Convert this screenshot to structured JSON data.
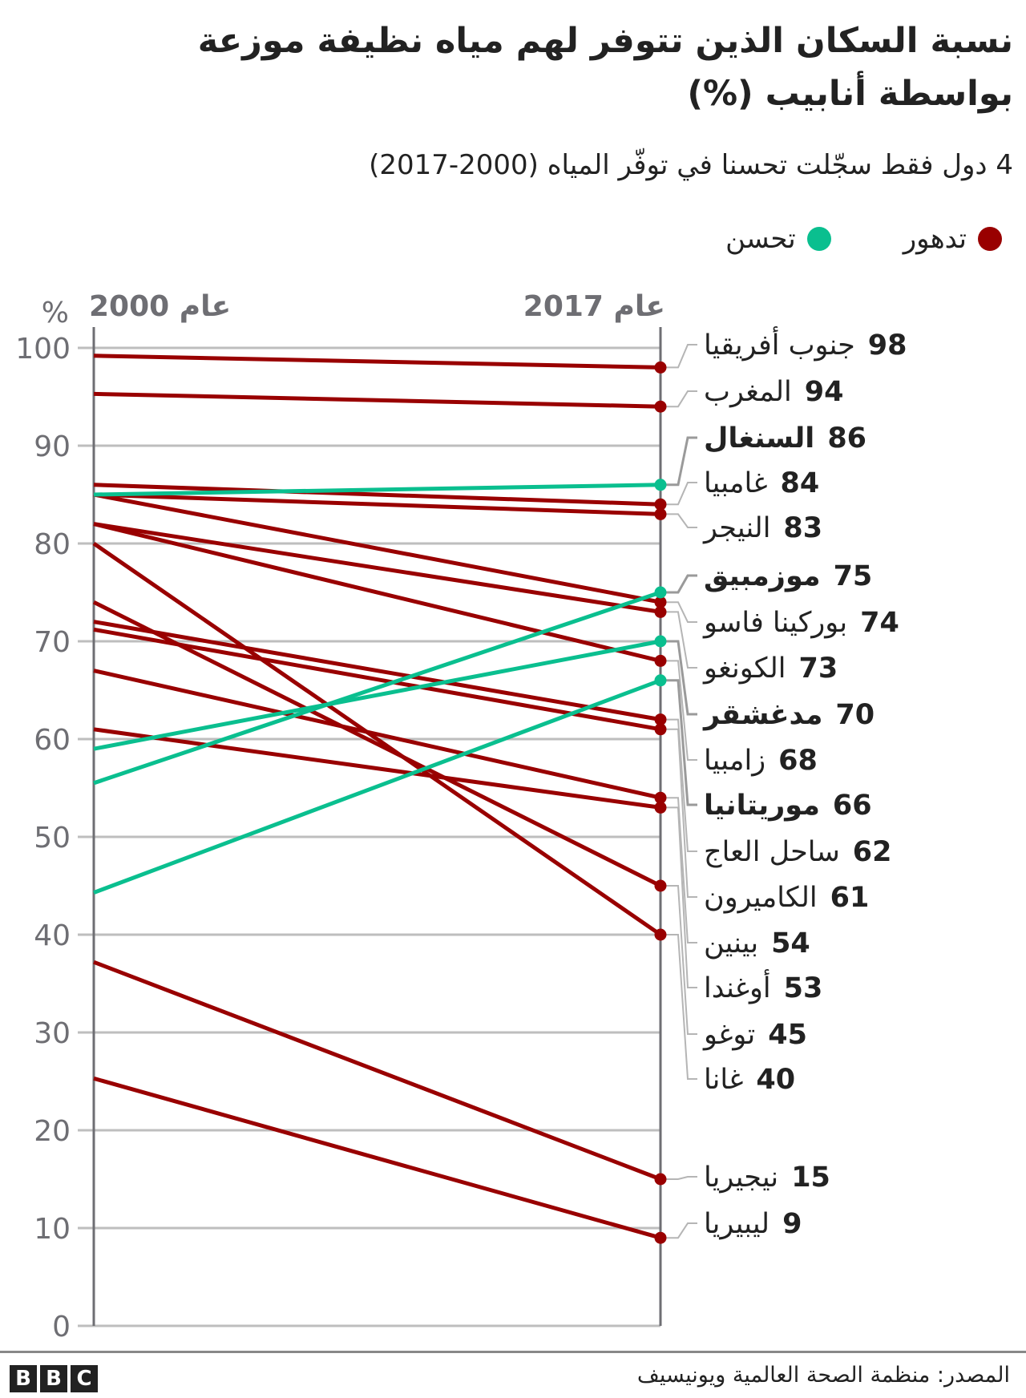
{
  "header": {
    "title": "نسبة السكان الذين تتوفر لهم مياه نظيفة موزعة بواسطة أنابيب (%)",
    "subtitle": "4 دول فقط سجّلت تحسنا في توفّر المياه (2000-2017)"
  },
  "legend": {
    "decline_label": "تدهور",
    "improve_label": "تحسن"
  },
  "colors": {
    "decline": "#990000",
    "improve": "#0ABF8F",
    "grid": "#bebebe",
    "axis": "#6e6e73"
  },
  "footer": {
    "source": "المصدر: منظمة الصحة العالمية ويونيسيف",
    "logo_letters": [
      "B",
      "B",
      "C"
    ]
  },
  "chart_data": {
    "type": "line",
    "subtype": "slope",
    "title": "نسبة السكان الذين تتوفر لهم مياه نظيفة موزعة بواسطة أنابيب (%)",
    "subtitle": "4 دول فقط سجّلت تحسنا في توفّر المياه (2000-2017)",
    "x": [
      "عام 2000",
      "عام 2017"
    ],
    "ylabel": "%",
    "ylim": [
      0,
      100
    ],
    "yticks": [
      0,
      10,
      20,
      30,
      40,
      50,
      60,
      70,
      80,
      90,
      100
    ],
    "grid": true,
    "legend_position": "top-right",
    "series": [
      {
        "name": "جنوب أفريقيا",
        "values": [
          99.2,
          98
        ],
        "status": "decline",
        "label_value": "98",
        "bold": false
      },
      {
        "name": "المغرب",
        "values": [
          95.3,
          94
        ],
        "status": "decline",
        "label_value": "94",
        "bold": false
      },
      {
        "name": "السنغال",
        "values": [
          85,
          86
        ],
        "status": "improve",
        "label_value": "86",
        "bold": true
      },
      {
        "name": "غامبيا",
        "values": [
          86,
          84
        ],
        "status": "decline",
        "label_value": "84",
        "bold": false
      },
      {
        "name": "النيجر",
        "values": [
          85,
          83
        ],
        "status": "decline",
        "label_value": "83",
        "bold": false
      },
      {
        "name": "موزمبيق",
        "values": [
          55.5,
          75
        ],
        "status": "improve",
        "label_value": "75",
        "bold": true
      },
      {
        "name": "بوركينا فاسو",
        "values": [
          85,
          74
        ],
        "status": "decline",
        "label_value": "74",
        "bold": false
      },
      {
        "name": "الكونغو",
        "values": [
          82,
          73
        ],
        "status": "decline",
        "label_value": "73",
        "bold": false
      },
      {
        "name": "مدغشقر",
        "values": [
          59,
          70
        ],
        "status": "improve",
        "label_value": "70",
        "bold": true
      },
      {
        "name": "زامبيا",
        "values": [
          82,
          68
        ],
        "status": "decline",
        "label_value": "68",
        "bold": false
      },
      {
        "name": "موريتانيا",
        "values": [
          44.3,
          66
        ],
        "status": "improve",
        "label_value": "66",
        "bold": true
      },
      {
        "name": "ساحل العاج",
        "values": [
          72,
          62
        ],
        "status": "decline",
        "label_value": "62",
        "bold": false
      },
      {
        "name": "الكاميرون",
        "values": [
          71.2,
          61
        ],
        "status": "decline",
        "label_value": "61",
        "bold": false
      },
      {
        "name": "بينين",
        "values": [
          67,
          54
        ],
        "status": "decline",
        "label_value": "54",
        "bold": false
      },
      {
        "name": "أوغندا",
        "values": [
          61,
          53
        ],
        "status": "decline",
        "label_value": "53",
        "bold": false
      },
      {
        "name": "توغو",
        "values": [
          74,
          45
        ],
        "status": "decline",
        "label_value": "45",
        "bold": false
      },
      {
        "name": "غانا",
        "values": [
          80,
          40
        ],
        "status": "decline",
        "label_value": "40",
        "bold": false
      },
      {
        "name": "نيجيريا",
        "values": [
          37.2,
          15
        ],
        "status": "decline",
        "label_value": "15",
        "bold": false
      },
      {
        "name": "ليبيريا",
        "values": [
          25.3,
          9
        ],
        "status": "decline",
        "label_value": "9",
        "bold": false
      }
    ]
  }
}
